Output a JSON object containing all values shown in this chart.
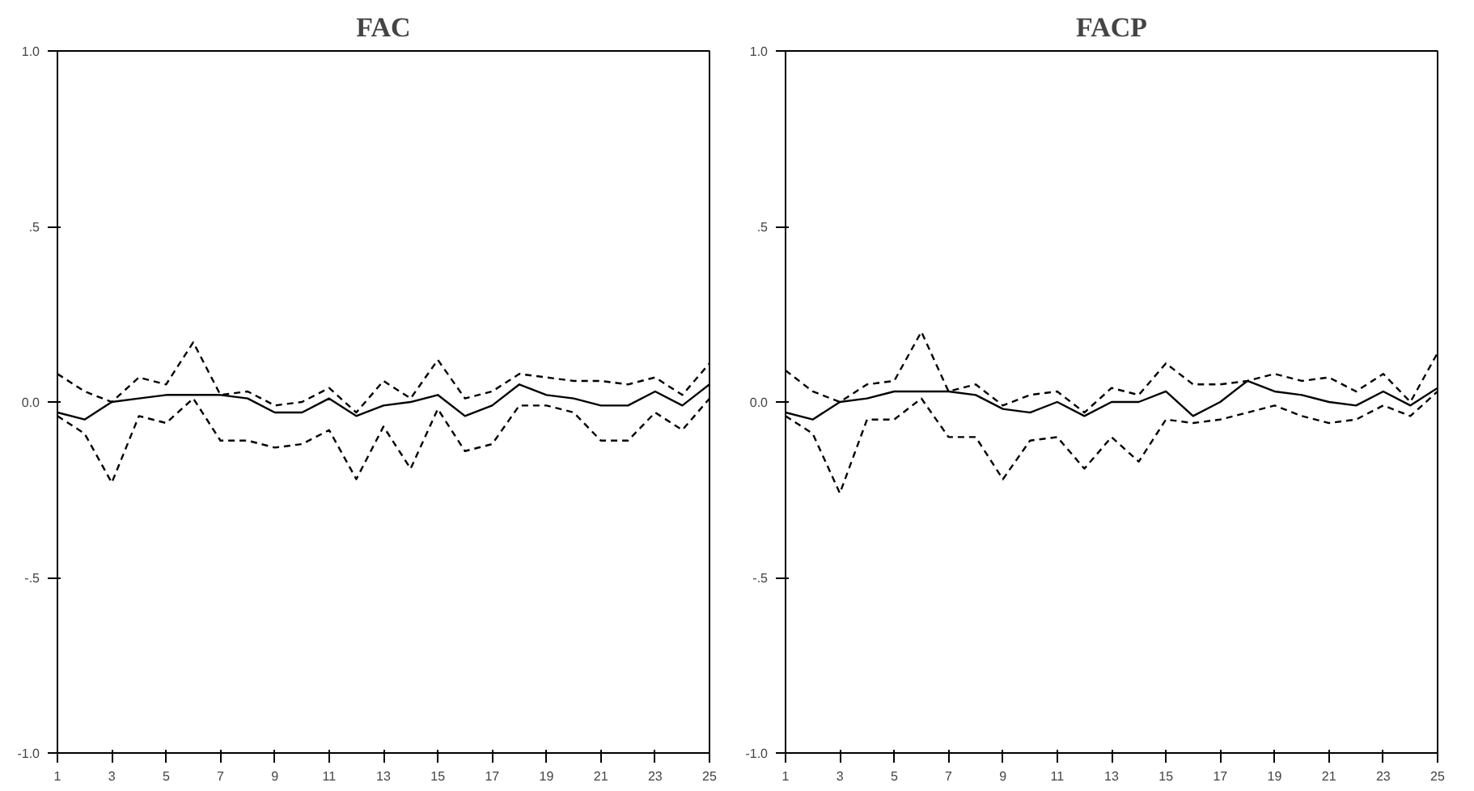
{
  "chart_data": [
    {
      "type": "line",
      "title": "FAC",
      "x": [
        1,
        2,
        3,
        4,
        5,
        6,
        7,
        8,
        9,
        10,
        11,
        12,
        13,
        14,
        15,
        16,
        17,
        18,
        19,
        20,
        21,
        22,
        23,
        24,
        25
      ],
      "xlim": [
        1,
        25
      ],
      "xticks": [
        1,
        3,
        5,
        7,
        9,
        11,
        13,
        15,
        17,
        19,
        21,
        23,
        25
      ],
      "ylim": [
        -1.0,
        1.0
      ],
      "yticks": [
        {
          "value": -1.0,
          "label": "-1.0"
        },
        {
          "value": -0.5,
          "label": "-.5"
        },
        {
          "value": 0.0,
          "label": "0.0"
        },
        {
          "value": 0.5,
          "label": ".5"
        },
        {
          "value": 1.0,
          "label": "1.0"
        }
      ],
      "series": [
        {
          "color": "#000000",
          "line_style": "solid",
          "values": [
            -0.03,
            -0.05,
            0.0,
            0.01,
            0.02,
            0.02,
            0.02,
            0.01,
            -0.03,
            -0.03,
            0.01,
            -0.04,
            -0.01,
            0.0,
            0.02,
            -0.04,
            -0.01,
            0.05,
            0.02,
            0.01,
            -0.01,
            -0.01,
            0.03,
            -0.01,
            0.05
          ]
        },
        {
          "color": "#000000",
          "line_style": "dashed",
          "values": [
            0.08,
            0.03,
            0.0,
            0.07,
            0.05,
            0.17,
            0.02,
            0.03,
            -0.01,
            0.0,
            0.04,
            -0.03,
            0.06,
            0.01,
            0.12,
            0.01,
            0.03,
            0.08,
            0.07,
            0.06,
            0.06,
            0.05,
            0.07,
            0.02,
            0.11
          ]
        },
        {
          "color": "#000000",
          "line_style": "dashed",
          "values": [
            -0.04,
            -0.09,
            -0.23,
            -0.04,
            -0.06,
            0.01,
            -0.11,
            -0.11,
            -0.13,
            -0.12,
            -0.08,
            -0.22,
            -0.07,
            -0.19,
            -0.02,
            -0.14,
            -0.12,
            -0.01,
            -0.01,
            -0.03,
            -0.11,
            -0.11,
            -0.03,
            -0.08,
            0.01
          ]
        }
      ]
    },
    {
      "type": "line",
      "title": "FACP",
      "x": [
        1,
        2,
        3,
        4,
        5,
        6,
        7,
        8,
        9,
        10,
        11,
        12,
        13,
        14,
        15,
        16,
        17,
        18,
        19,
        20,
        21,
        22,
        23,
        24,
        25
      ],
      "xlim": [
        1,
        25
      ],
      "xticks": [
        1,
        3,
        5,
        7,
        9,
        11,
        13,
        15,
        17,
        19,
        21,
        23,
        25
      ],
      "ylim": [
        -1.0,
        1.0
      ],
      "yticks": [
        {
          "value": -1.0,
          "label": "-1.0"
        },
        {
          "value": -0.5,
          "label": "-.5"
        },
        {
          "value": 0.0,
          "label": "0.0"
        },
        {
          "value": 0.5,
          "label": ".5"
        },
        {
          "value": 1.0,
          "label": "1.0"
        }
      ],
      "series": [
        {
          "color": "#000000",
          "line_style": "solid",
          "values": [
            -0.03,
            -0.05,
            0.0,
            0.01,
            0.03,
            0.03,
            0.03,
            0.02,
            -0.02,
            -0.03,
            0.0,
            -0.04,
            0.0,
            0.0,
            0.03,
            -0.04,
            0.0,
            0.06,
            0.03,
            0.02,
            0.0,
            -0.01,
            0.03,
            -0.01,
            0.04
          ]
        },
        {
          "color": "#000000",
          "line_style": "dashed",
          "values": [
            0.09,
            0.03,
            0.0,
            0.05,
            0.06,
            0.2,
            0.03,
            0.05,
            -0.01,
            0.02,
            0.03,
            -0.03,
            0.04,
            0.02,
            0.11,
            0.05,
            0.05,
            0.06,
            0.08,
            0.06,
            0.07,
            0.03,
            0.08,
            0.0,
            0.14
          ]
        },
        {
          "color": "#000000",
          "line_style": "dashed",
          "values": [
            -0.04,
            -0.09,
            -0.26,
            -0.05,
            -0.05,
            0.01,
            -0.1,
            -0.1,
            -0.22,
            -0.11,
            -0.1,
            -0.19,
            -0.1,
            -0.17,
            -0.05,
            -0.06,
            -0.05,
            -0.03,
            -0.01,
            -0.04,
            -0.06,
            -0.05,
            -0.01,
            -0.04,
            0.03
          ]
        }
      ]
    }
  ]
}
